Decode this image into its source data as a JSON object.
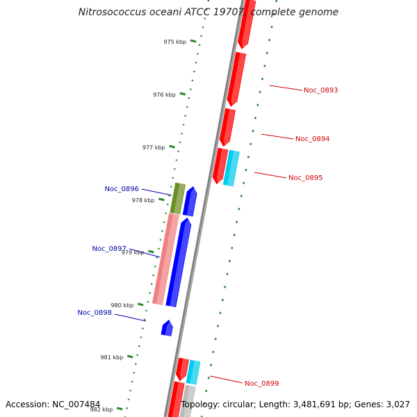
{
  "title": "Nitrosococcus oceani ATCC 19707, complete genome",
  "accession": "Accession: NC_007484",
  "summary": "Topology: circular; Length: 3,481,691 bp; Genes: 3,027",
  "colors": {
    "backbone": "#808080",
    "dotted_track": "#2a8a2a",
    "forward_label": "#cc0000",
    "reverse_label": "#0000aa",
    "red_gene": "#ff0000",
    "cyan_gene": "#00ccee",
    "blue_gene": "#0000ff",
    "olive_gene": "#6b8e23",
    "pink_gene": "#f08080",
    "grey_gene": "#bbbbbb"
  },
  "ticks": [
    {
      "label": "975 kbp"
    },
    {
      "label": "976 kbp"
    },
    {
      "label": "977 kbp"
    },
    {
      "label": "978 kbp"
    },
    {
      "label": "979 kbp"
    },
    {
      "label": "980 kbp"
    },
    {
      "label": "981 kbp"
    },
    {
      "label": "982 kbp"
    }
  ],
  "gene_labels": [
    {
      "name": "Noc_0893",
      "strand": "forward"
    },
    {
      "name": "Noc_0894",
      "strand": "forward"
    },
    {
      "name": "Noc_0895",
      "strand": "forward"
    },
    {
      "name": "Noc_0896",
      "strand": "reverse"
    },
    {
      "name": "Noc_0897",
      "strand": "reverse"
    },
    {
      "name": "Noc_0898",
      "strand": "reverse"
    },
    {
      "name": "Noc_0899",
      "strand": "forward"
    }
  ]
}
